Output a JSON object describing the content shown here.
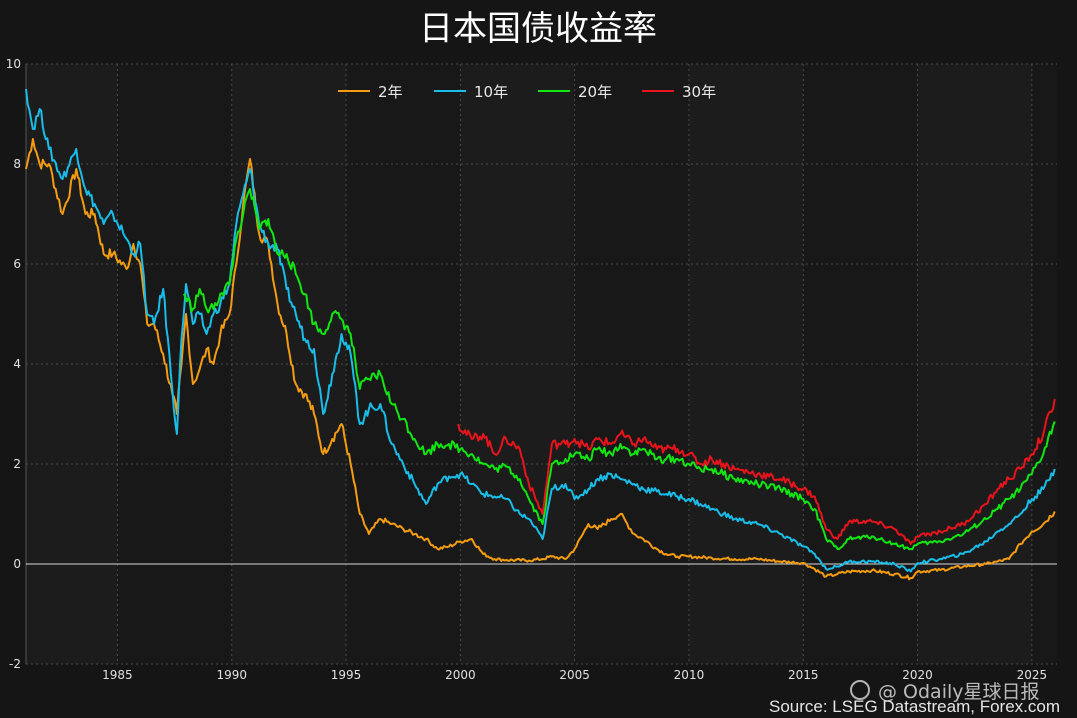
{
  "chart_data": {
    "type": "line",
    "title": "日本国债收益率",
    "xlabel": "",
    "ylabel": "",
    "xlim": [
      1981.0,
      2026.1
    ],
    "ylim": [
      -2,
      10
    ],
    "yticks": [
      "-2",
      "0",
      "2",
      "4",
      "6",
      "8",
      "10"
    ],
    "xticks": [
      "1985",
      "1990",
      "1995",
      "2000",
      "2005",
      "2010",
      "2015",
      "2020",
      "2025"
    ],
    "grid": true,
    "legend_position": "top-center",
    "series": [
      {
        "name": "2年",
        "color": "#f39c12",
        "x": [
          1981.0,
          1981.3,
          1981.6,
          1982.0,
          1982.6,
          1983.2,
          1983.6,
          1984.0,
          1984.4,
          1984.8,
          1985.4,
          1985.7,
          1986.0,
          1986.3,
          1986.6,
          1987.0,
          1987.4,
          1987.6,
          1987.8,
          1988.0,
          1988.3,
          1988.6,
          1988.9,
          1989.2,
          1989.5,
          1989.9,
          1990.2,
          1990.5,
          1990.8,
          1991.2,
          1991.6,
          1992.0,
          1992.4,
          1992.8,
          1993.2,
          1993.6,
          1994.0,
          1994.4,
          1994.8,
          1995.2,
          1995.6,
          1996.0,
          1996.5,
          1997.0,
          1997.5,
          1998.0,
          1998.5,
          1999.0,
          1999.5,
          2000.0,
          2000.5,
          2001.0,
          2001.5,
          2002.0,
          2003.0,
          2003.6,
          2004.0,
          2004.6,
          2005.0,
          2005.6,
          2006.0,
          2006.6,
          2007.0,
          2007.6,
          2008.0,
          2008.6,
          2009.0,
          2009.5,
          2010.0,
          2011.0,
          2012.0,
          2013.0,
          2014.0,
          2015.0,
          2015.5,
          2016.0,
          2016.5,
          2017.0,
          2018.0,
          2019.0,
          2019.7,
          2020.0,
          2021.0,
          2022.0,
          2023.0,
          2023.5,
          2024.0,
          2024.5,
          2025.0,
          2025.5,
          2026.0
        ],
        "values": [
          7.9,
          8.5,
          8.0,
          8.0,
          7.0,
          7.9,
          7.0,
          7.0,
          6.2,
          6.2,
          5.9,
          6.4,
          6.0,
          4.8,
          4.8,
          4.2,
          3.4,
          3.0,
          4.0,
          5.0,
          3.6,
          3.9,
          4.3,
          4.0,
          4.6,
          5.0,
          6.0,
          7.2,
          8.1,
          6.6,
          6.4,
          5.2,
          4.6,
          3.6,
          3.4,
          3.0,
          2.2,
          2.5,
          2.8,
          2.0,
          1.0,
          0.6,
          0.9,
          0.8,
          0.7,
          0.6,
          0.5,
          0.3,
          0.35,
          0.45,
          0.5,
          0.2,
          0.1,
          0.08,
          0.07,
          0.1,
          0.15,
          0.1,
          0.3,
          0.8,
          0.7,
          0.9,
          1.0,
          0.6,
          0.5,
          0.3,
          0.2,
          0.15,
          0.15,
          0.12,
          0.1,
          0.1,
          0.05,
          0.02,
          -0.1,
          -0.25,
          -0.2,
          -0.15,
          -0.13,
          -0.2,
          -0.28,
          -0.15,
          -0.12,
          -0.05,
          0.0,
          0.05,
          0.1,
          0.4,
          0.65,
          0.8,
          1.05
        ]
      },
      {
        "name": "10年",
        "color": "#19bde8",
        "x": [
          1981.0,
          1981.3,
          1981.6,
          1982.0,
          1982.6,
          1983.2,
          1983.6,
          1984.0,
          1984.4,
          1984.8,
          1985.4,
          1985.7,
          1986.0,
          1986.3,
          1986.6,
          1987.0,
          1987.4,
          1987.6,
          1987.8,
          1988.0,
          1988.3,
          1988.6,
          1988.9,
          1989.2,
          1989.5,
          1989.9,
          1990.2,
          1990.5,
          1990.8,
          1991.2,
          1991.6,
          1992.0,
          1992.4,
          1992.8,
          1993.2,
          1993.6,
          1994.0,
          1994.4,
          1994.8,
          1995.2,
          1995.6,
          1996.0,
          1996.5,
          1997.0,
          1997.5,
          1998.0,
          1998.5,
          1999.0,
          1999.5,
          2000.0,
          2000.5,
          2001.0,
          2001.5,
          2002.0,
          2002.6,
          2003.0,
          2003.6,
          2004.0,
          2004.6,
          2005.0,
          2005.6,
          2006.0,
          2006.6,
          2007.0,
          2007.6,
          2008.0,
          2008.6,
          2009.0,
          2009.5,
          2010.0,
          2010.5,
          2011.0,
          2012.0,
          2013.0,
          2014.0,
          2015.0,
          2015.5,
          2016.0,
          2016.5,
          2017.0,
          2018.0,
          2019.0,
          2019.7,
          2020.0,
          2021.0,
          2022.0,
          2023.0,
          2023.5,
          2024.0,
          2024.5,
          2025.0,
          2025.5,
          2026.0
        ],
        "values": [
          9.5,
          8.7,
          9.1,
          8.3,
          7.7,
          8.3,
          7.5,
          7.2,
          6.8,
          7.0,
          6.5,
          6.2,
          6.4,
          5.0,
          4.8,
          5.5,
          3.5,
          2.6,
          4.5,
          5.6,
          4.8,
          5.0,
          4.6,
          5.0,
          5.2,
          5.6,
          6.8,
          7.4,
          7.9,
          6.8,
          6.4,
          6.3,
          5.5,
          5.0,
          4.5,
          4.3,
          3.0,
          3.8,
          4.6,
          4.2,
          2.8,
          3.1,
          3.2,
          2.4,
          2.0,
          1.6,
          1.2,
          1.6,
          1.75,
          1.8,
          1.6,
          1.4,
          1.35,
          1.3,
          1.0,
          0.9,
          0.5,
          1.5,
          1.6,
          1.3,
          1.5,
          1.7,
          1.8,
          1.7,
          1.6,
          1.5,
          1.45,
          1.4,
          1.35,
          1.3,
          1.2,
          1.1,
          0.9,
          0.8,
          0.6,
          0.35,
          0.2,
          -0.1,
          -0.05,
          0.05,
          0.05,
          0.0,
          -0.15,
          0.02,
          0.1,
          0.2,
          0.45,
          0.65,
          0.8,
          1.0,
          1.3,
          1.5,
          1.9
        ]
      },
      {
        "name": "20年",
        "color": "#11e611",
        "x": [
          1987.9,
          1988.3,
          1988.6,
          1988.9,
          1989.2,
          1989.5,
          1989.9,
          1990.2,
          1990.5,
          1990.8,
          1991.2,
          1991.6,
          1992.0,
          1992.4,
          1992.8,
          1993.2,
          1993.6,
          1994.0,
          1994.4,
          1994.8,
          1995.2,
          1995.6,
          1996.0,
          1996.5,
          1997.0,
          1997.5,
          1998.0,
          1998.5,
          1999.0,
          1999.5,
          2000.0,
          2000.5,
          2001.0,
          2001.5,
          2002.0,
          2002.6,
          2003.0,
          2003.6,
          2004.0,
          2004.6,
          2005.0,
          2005.6,
          2006.0,
          2006.6,
          2007.0,
          2007.6,
          2008.0,
          2008.6,
          2009.0,
          2009.5,
          2010.0,
          2010.5,
          2011.0,
          2012.0,
          2013.0,
          2014.0,
          2015.0,
          2015.5,
          2016.0,
          2016.5,
          2017.0,
          2018.0,
          2019.0,
          2019.7,
          2020.0,
          2021.0,
          2022.0,
          2023.0,
          2023.5,
          2024.0,
          2024.5,
          2025.0,
          2025.5,
          2026.0
        ],
        "values": [
          5.4,
          5.1,
          5.5,
          5.1,
          5.1,
          5.4,
          5.6,
          6.5,
          7.0,
          7.5,
          6.7,
          6.9,
          6.2,
          6.2,
          5.8,
          5.4,
          4.8,
          4.6,
          5.0,
          4.9,
          4.6,
          3.5,
          3.7,
          3.8,
          3.2,
          2.9,
          2.5,
          2.2,
          2.4,
          2.4,
          2.3,
          2.2,
          2.0,
          1.9,
          1.95,
          1.7,
          1.3,
          0.8,
          2.0,
          2.1,
          2.2,
          2.1,
          2.3,
          2.2,
          2.4,
          2.2,
          2.3,
          2.1,
          2.1,
          2.1,
          2.0,
          1.9,
          1.9,
          1.7,
          1.6,
          1.5,
          1.3,
          1.1,
          0.5,
          0.3,
          0.5,
          0.55,
          0.4,
          0.3,
          0.4,
          0.45,
          0.6,
          0.9,
          1.1,
          1.3,
          1.5,
          1.8,
          2.2,
          2.85
        ]
      },
      {
        "name": "30年",
        "color": "#e8141b",
        "x": [
          1999.9,
          2000.5,
          2001.0,
          2001.5,
          2002.0,
          2002.6,
          2003.0,
          2003.6,
          2004.0,
          2004.6,
          2005.0,
          2005.6,
          2006.0,
          2006.6,
          2007.0,
          2007.6,
          2008.0,
          2008.6,
          2009.0,
          2009.5,
          2010.0,
          2010.5,
          2011.0,
          2012.0,
          2013.0,
          2014.0,
          2015.0,
          2015.5,
          2016.0,
          2016.5,
          2017.0,
          2018.0,
          2019.0,
          2019.7,
          2020.0,
          2021.0,
          2022.0,
          2023.0,
          2023.5,
          2024.0,
          2024.5,
          2025.0,
          2025.5,
          2026.0
        ],
        "values": [
          2.8,
          2.5,
          2.6,
          2.2,
          2.5,
          2.3,
          1.6,
          1.0,
          2.4,
          2.4,
          2.5,
          2.3,
          2.5,
          2.4,
          2.6,
          2.4,
          2.5,
          2.3,
          2.3,
          2.3,
          2.2,
          2.0,
          2.1,
          1.9,
          1.8,
          1.7,
          1.5,
          1.35,
          0.7,
          0.5,
          0.85,
          0.85,
          0.7,
          0.4,
          0.55,
          0.65,
          0.8,
          1.2,
          1.5,
          1.7,
          1.9,
          2.2,
          2.6,
          3.3
        ]
      }
    ],
    "baseline_value": 0
  },
  "source_text": "Source: LSEG Datastream, Forex.com",
  "watermark_text": "@ Odaily星球日报"
}
